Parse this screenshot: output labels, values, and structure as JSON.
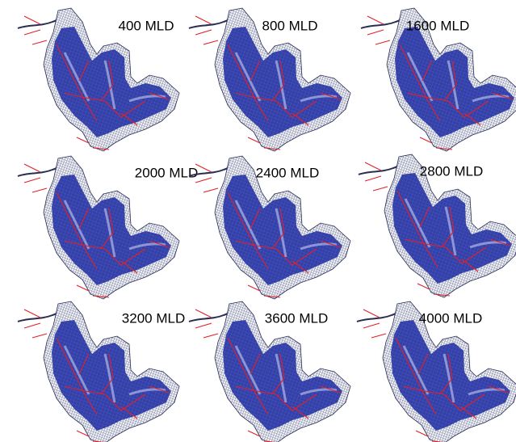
{
  "panels": [
    {
      "label": "400 MLD"
    },
    {
      "label": "800 MLD"
    },
    {
      "label": "1600 MLD"
    },
    {
      "label": "2000 MLD"
    },
    {
      "label": "2400 MLD"
    },
    {
      "label": "2800 MLD"
    },
    {
      "label": "3200 MLD"
    },
    {
      "label": "3600 MLD"
    },
    {
      "label": "4000 MLD"
    }
  ]
}
